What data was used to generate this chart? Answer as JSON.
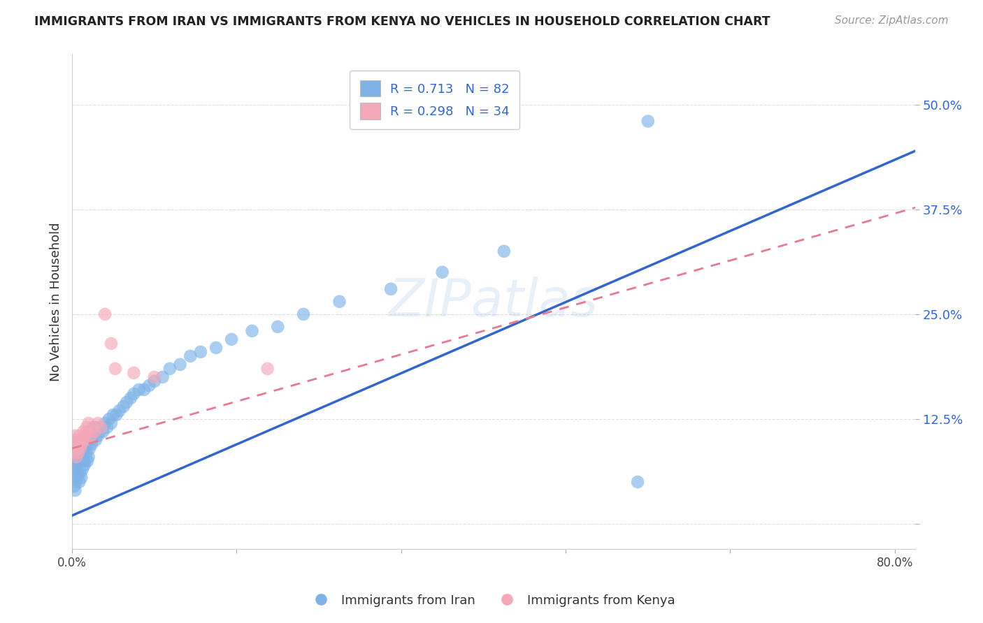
{
  "title": "IMMIGRANTS FROM IRAN VS IMMIGRANTS FROM KENYA NO VEHICLES IN HOUSEHOLD CORRELATION CHART",
  "source": "Source: ZipAtlas.com",
  "ylabel": "No Vehicles in Household",
  "iran_R": 0.713,
  "iran_N": 82,
  "kenya_R": 0.298,
  "kenya_N": 34,
  "xlim": [
    0.0,
    0.82
  ],
  "ylim": [
    -0.03,
    0.56
  ],
  "yticks": [
    0.0,
    0.125,
    0.25,
    0.375,
    0.5
  ],
  "ytick_labels": [
    "",
    "12.5%",
    "25.0%",
    "37.5%",
    "50.0%"
  ],
  "xticks": [
    0.0,
    0.16,
    0.32,
    0.48,
    0.64,
    0.8
  ],
  "xtick_labels": [
    "0.0%",
    "",
    "",
    "",
    "",
    "80.0%"
  ],
  "iran_color": "#7fb3e8",
  "kenya_color": "#f4a8b8",
  "iran_line_color": "#3366cc",
  "kenya_line_color": "#e87a90",
  "watermark_text": "ZIPatlas",
  "background_color": "#ffffff",
  "iran_legend_label": "Immigrants from Iran",
  "kenya_legend_label": "Immigrants from Kenya",
  "iran_line_intercept": 0.01,
  "iran_line_slope": 0.53,
  "kenya_line_intercept": 0.09,
  "kenya_line_slope": 0.35,
  "iran_x": [
    0.001,
    0.002,
    0.002,
    0.003,
    0.003,
    0.003,
    0.004,
    0.004,
    0.004,
    0.005,
    0.005,
    0.005,
    0.006,
    0.006,
    0.006,
    0.007,
    0.007,
    0.007,
    0.008,
    0.008,
    0.008,
    0.009,
    0.009,
    0.009,
    0.01,
    0.01,
    0.01,
    0.011,
    0.011,
    0.012,
    0.012,
    0.013,
    0.013,
    0.014,
    0.014,
    0.015,
    0.015,
    0.016,
    0.016,
    0.017,
    0.018,
    0.019,
    0.02,
    0.021,
    0.022,
    0.023,
    0.024,
    0.025,
    0.027,
    0.028,
    0.03,
    0.032,
    0.034,
    0.036,
    0.038,
    0.04,
    0.043,
    0.046,
    0.05,
    0.053,
    0.057,
    0.06,
    0.065,
    0.07,
    0.075,
    0.08,
    0.088,
    0.095,
    0.105,
    0.115,
    0.125,
    0.14,
    0.155,
    0.175,
    0.2,
    0.225,
    0.26,
    0.31,
    0.36,
    0.42,
    0.55,
    0.56
  ],
  "iran_y": [
    0.06,
    0.045,
    0.07,
    0.04,
    0.065,
    0.08,
    0.05,
    0.075,
    0.09,
    0.055,
    0.07,
    0.085,
    0.06,
    0.08,
    0.095,
    0.05,
    0.075,
    0.09,
    0.06,
    0.085,
    0.095,
    0.055,
    0.075,
    0.095,
    0.065,
    0.085,
    0.1,
    0.075,
    0.09,
    0.07,
    0.09,
    0.075,
    0.095,
    0.085,
    0.1,
    0.075,
    0.095,
    0.08,
    0.1,
    0.09,
    0.11,
    0.095,
    0.11,
    0.105,
    0.115,
    0.1,
    0.115,
    0.105,
    0.11,
    0.115,
    0.11,
    0.12,
    0.115,
    0.125,
    0.12,
    0.13,
    0.13,
    0.135,
    0.14,
    0.145,
    0.15,
    0.155,
    0.16,
    0.16,
    0.165,
    0.17,
    0.175,
    0.185,
    0.19,
    0.2,
    0.205,
    0.21,
    0.22,
    0.23,
    0.235,
    0.25,
    0.265,
    0.28,
    0.3,
    0.325,
    0.05,
    0.48
  ],
  "kenya_x": [
    0.001,
    0.002,
    0.002,
    0.003,
    0.003,
    0.004,
    0.004,
    0.005,
    0.005,
    0.006,
    0.006,
    0.007,
    0.007,
    0.008,
    0.008,
    0.009,
    0.01,
    0.011,
    0.012,
    0.013,
    0.014,
    0.015,
    0.016,
    0.018,
    0.02,
    0.022,
    0.025,
    0.028,
    0.032,
    0.038,
    0.042,
    0.06,
    0.08,
    0.19
  ],
  "kenya_y": [
    0.085,
    0.09,
    0.1,
    0.095,
    0.105,
    0.08,
    0.095,
    0.1,
    0.09,
    0.085,
    0.1,
    0.095,
    0.105,
    0.09,
    0.1,
    0.095,
    0.1,
    0.11,
    0.105,
    0.1,
    0.115,
    0.11,
    0.12,
    0.105,
    0.115,
    0.11,
    0.12,
    0.115,
    0.25,
    0.215,
    0.185,
    0.18,
    0.175,
    0.185
  ]
}
